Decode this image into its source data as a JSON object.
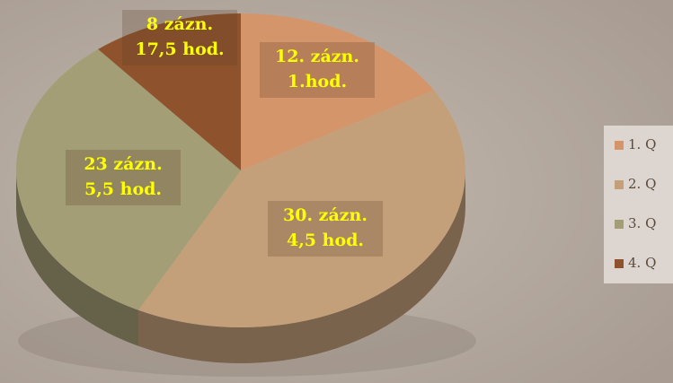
{
  "chart_data": {
    "type": "pie",
    "categories": [
      "1. Q",
      "2. Q",
      "3. Q",
      "4. Q"
    ],
    "values": [
      12,
      30,
      23,
      8
    ],
    "value_labels": [
      [
        "12. zázn.",
        "1.hod."
      ],
      [
        "30. zázn.",
        "4,5 hod."
      ],
      [
        "23 zázn.",
        "5,5  hod."
      ],
      [
        "8 zázn.",
        "17,5 hod."
      ]
    ],
    "colors": [
      "#d4956a",
      "#c4a07a",
      "#a39e76",
      "#8e532c"
    ],
    "legend": "right"
  }
}
